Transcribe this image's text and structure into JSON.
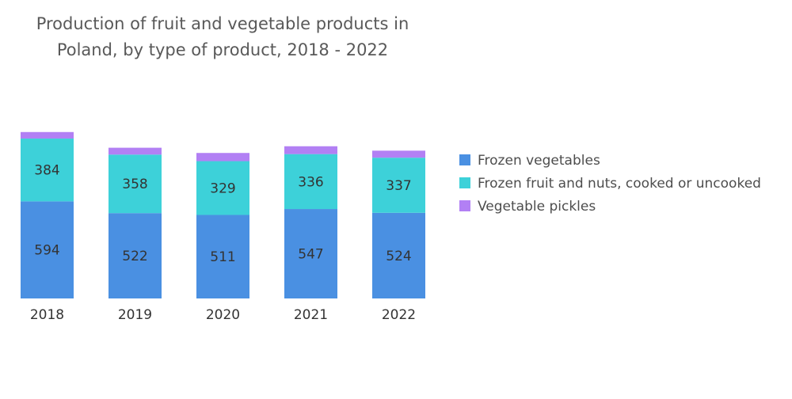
{
  "chart_data": {
    "type": "bar",
    "stacked": true,
    "title": "Production of fruit and vegetable products in Poland, by type of product, 2018 - 2022",
    "title_lines": [
      "Production of fruit and vegetable products in",
      "Poland, by type of product, 2018 - 2022"
    ],
    "categories": [
      "2018",
      "2019",
      "2020",
      "2021",
      "2022"
    ],
    "series": [
      {
        "name": "Frozen vegetables",
        "color": "#4a90e2",
        "values": [
          594,
          522,
          511,
          547,
          524
        ],
        "labeled": true
      },
      {
        "name": "Frozen fruit and nuts, cooked or uncooked",
        "color": "#3dd1d9",
        "values": [
          384,
          358,
          329,
          336,
          337
        ],
        "labeled": true
      },
      {
        "name": "Vegetable pickles",
        "color": "#b280f4",
        "values": [
          40,
          42,
          50,
          48,
          43
        ],
        "labeled": false
      }
    ],
    "xlabel": "",
    "ylabel": "",
    "ylim": [
      0,
      1000
    ],
    "grid": false,
    "legend_position": "right"
  }
}
